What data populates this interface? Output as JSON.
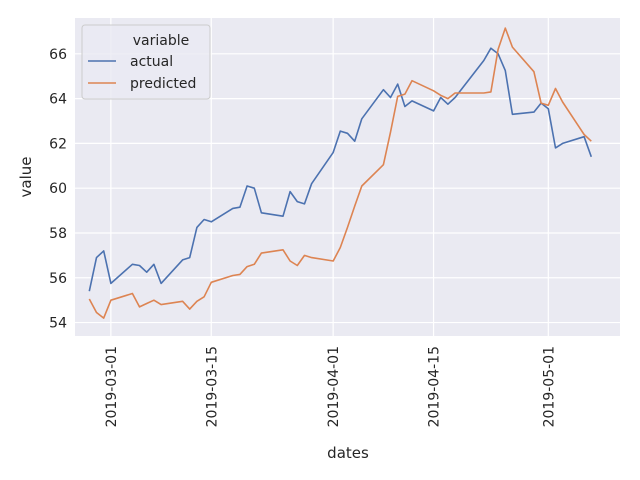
{
  "chart_data": {
    "type": "line",
    "xlabel": "dates",
    "ylabel": "value",
    "legend": {
      "title": "variable",
      "placement": "top-left"
    },
    "grid": true,
    "x_ticks": [
      "2019-03-01",
      "2019-03-15",
      "2019-04-01",
      "2019-04-15",
      "2019-05-01"
    ],
    "y_ticks": [
      54,
      56,
      58,
      60,
      62,
      64,
      66
    ],
    "xlim": [
      "2019-02-24",
      "2019-05-11"
    ],
    "ylim": [
      53.4,
      67.6
    ],
    "series": [
      {
        "name": "actual",
        "color": "#4c72b0",
        "x": [
          "2019-02-26",
          "2019-02-27",
          "2019-02-28",
          "2019-03-01",
          "2019-03-04",
          "2019-03-05",
          "2019-03-06",
          "2019-03-07",
          "2019-03-08",
          "2019-03-11",
          "2019-03-12",
          "2019-03-13",
          "2019-03-14",
          "2019-03-15",
          "2019-03-18",
          "2019-03-19",
          "2019-03-20",
          "2019-03-21",
          "2019-03-22",
          "2019-03-25",
          "2019-03-26",
          "2019-03-27",
          "2019-03-28",
          "2019-03-29",
          "2019-04-01",
          "2019-04-02",
          "2019-04-03",
          "2019-04-04",
          "2019-04-05",
          "2019-04-08",
          "2019-04-09",
          "2019-04-10",
          "2019-04-11",
          "2019-04-12",
          "2019-04-15",
          "2019-04-16",
          "2019-04-17",
          "2019-04-18",
          "2019-04-22",
          "2019-04-23",
          "2019-04-24",
          "2019-04-25",
          "2019-04-26",
          "2019-04-29",
          "2019-04-30",
          "2019-05-01",
          "2019-05-02",
          "2019-05-03",
          "2019-05-06",
          "2019-05-07"
        ],
        "values": [
          55.4,
          56.9,
          57.2,
          55.75,
          56.6,
          56.55,
          56.25,
          56.6,
          55.75,
          56.8,
          56.9,
          58.25,
          58.6,
          58.5,
          59.1,
          59.15,
          60.1,
          60.0,
          58.9,
          58.75,
          59.85,
          59.4,
          59.3,
          60.2,
          61.6,
          62.55,
          62.45,
          62.1,
          63.1,
          64.4,
          64.05,
          64.65,
          63.65,
          63.9,
          63.45,
          64.05,
          63.75,
          64.05,
          65.7,
          66.25,
          66.0,
          65.25,
          63.3,
          63.4,
          63.8,
          63.55,
          61.8,
          62.0,
          62.3,
          61.4
        ]
      },
      {
        "name": "predicted",
        "color": "#dd8452",
        "x": [
          "2019-02-26",
          "2019-02-27",
          "2019-02-28",
          "2019-03-01",
          "2019-03-04",
          "2019-03-05",
          "2019-03-06",
          "2019-03-07",
          "2019-03-08",
          "2019-03-11",
          "2019-03-12",
          "2019-03-13",
          "2019-03-14",
          "2019-03-15",
          "2019-03-18",
          "2019-03-19",
          "2019-03-20",
          "2019-03-21",
          "2019-03-22",
          "2019-03-25",
          "2019-03-26",
          "2019-03-27",
          "2019-03-28",
          "2019-03-29",
          "2019-04-01",
          "2019-04-02",
          "2019-04-03",
          "2019-04-04",
          "2019-04-05",
          "2019-04-08",
          "2019-04-09",
          "2019-04-10",
          "2019-04-11",
          "2019-04-12",
          "2019-04-15",
          "2019-04-16",
          "2019-04-17",
          "2019-04-18",
          "2019-04-22",
          "2019-04-23",
          "2019-04-24",
          "2019-04-25",
          "2019-04-26",
          "2019-04-29",
          "2019-04-30",
          "2019-05-01",
          "2019-05-02",
          "2019-05-03",
          "2019-05-06",
          "2019-05-07"
        ],
        "values": [
          55.05,
          54.45,
          54.2,
          55.0,
          55.3,
          54.7,
          54.85,
          55.0,
          54.8,
          54.95,
          54.6,
          54.95,
          55.15,
          55.8,
          56.1,
          56.15,
          56.5,
          56.6,
          57.1,
          57.25,
          56.75,
          56.55,
          57.0,
          56.9,
          56.75,
          57.35,
          58.25,
          59.2,
          60.1,
          61.05,
          62.5,
          64.1,
          64.2,
          64.8,
          64.35,
          64.15,
          64.0,
          64.25,
          64.25,
          64.3,
          66.2,
          67.15,
          66.3,
          65.2,
          63.8,
          63.7,
          64.45,
          63.85,
          62.4,
          62.1
        ]
      }
    ]
  }
}
